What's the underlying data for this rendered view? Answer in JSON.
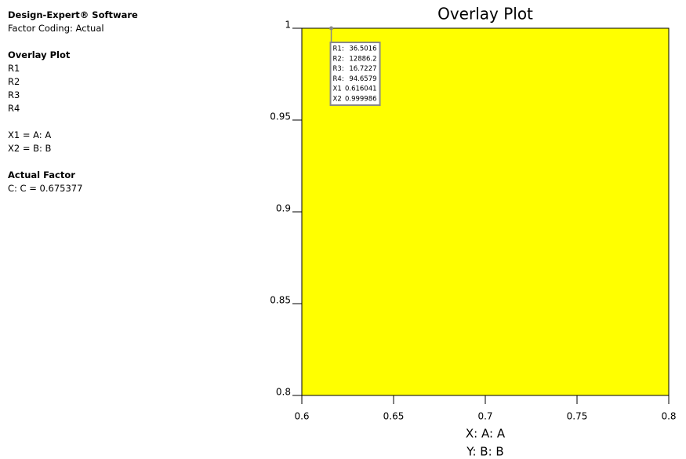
{
  "sidebar": {
    "software": "Design-Expert® Software",
    "coding": "Factor Coding: Actual",
    "plot_heading": "Overlay Plot",
    "responses": [
      "R1",
      "R2",
      "R3",
      "R4"
    ],
    "factors": [
      "X1 = A: A",
      "X2 = B: B"
    ],
    "actual_heading": "Actual Factor",
    "actual": [
      "C: C = 0.675377"
    ]
  },
  "chart_data": {
    "type": "overlay",
    "title": "Overlay Plot",
    "x_label": "X: A: A",
    "y_label": "Y: B: B",
    "region_color": "#ffff00",
    "xlim": [
      0.6,
      0.8
    ],
    "xticks": [
      0.6,
      0.65,
      0.7,
      0.75,
      0.8
    ],
    "ylim": [
      0.8,
      1
    ],
    "yticks": [
      0.8,
      0.85,
      0.9,
      0.95,
      1
    ],
    "flag": {
      "rows": [
        {
          "label": "R1:",
          "value": 36.5016
        },
        {
          "label": "R2:",
          "value": 12886.2
        },
        {
          "label": "R3:",
          "value": 16.7227
        },
        {
          "label": "R4:",
          "value": 94.6579
        },
        {
          "label": "X1",
          "value": 0.616041
        },
        {
          "label": "X2",
          "value": 0.999986
        }
      ]
    }
  }
}
